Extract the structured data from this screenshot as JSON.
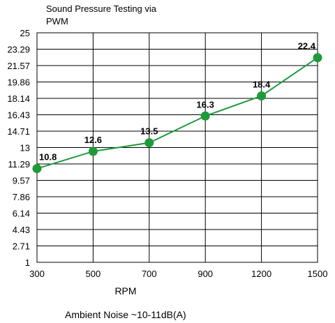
{
  "chart_data": {
    "type": "line",
    "title_lines": [
      "Sound Pressure Testing via",
      "PWM"
    ],
    "xlabel": "RPM",
    "ylabel": "",
    "note": "Ambient Noise ~10-11dB(A)",
    "categories": [
      "300",
      "500",
      "700",
      "900",
      "1200",
      "1500"
    ],
    "values": [
      10.8,
      12.6,
      13.5,
      16.3,
      18.4,
      22.4
    ],
    "data_labels": [
      "10.8",
      "12.6",
      "13.5",
      "16.3",
      "18.4",
      "22.4"
    ],
    "ylim": [
      1,
      25
    ],
    "y_ticks": [
      1,
      2.71,
      4.43,
      6.14,
      7.86,
      9.57,
      11.29,
      13,
      14.71,
      16.43,
      18.14,
      19.86,
      21.57,
      23.29,
      25
    ],
    "y_tick_labels": [
      "1",
      "2.71",
      "4.43",
      "6.14",
      "7.86",
      "9.57",
      "11.29",
      "13",
      "14.71",
      "16.43",
      "18.14",
      "19.86",
      "21.57",
      "23.29",
      "25"
    ],
    "grid": true,
    "legend": "none",
    "colors": {
      "line": "#1e9a3a",
      "marker": "#1e9a3a"
    }
  }
}
